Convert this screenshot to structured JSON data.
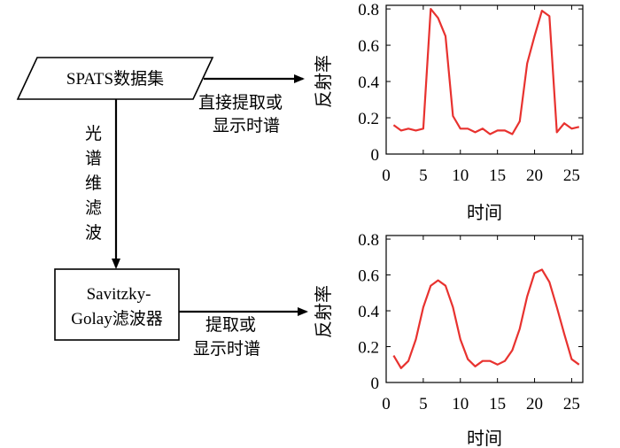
{
  "flowchart": {
    "dataset_label": "SPATS数据集",
    "filter_step_chars": [
      "光",
      "谱",
      "维",
      "滤",
      "波"
    ],
    "filter_box_line1": "Savitzky-",
    "filter_box_line2": "Golay滤波器",
    "top_arrow_line1": "直接提取或",
    "top_arrow_line2": "显示时谱",
    "bottom_arrow_line1": "提取或",
    "bottom_arrow_line2": "显示时谱"
  },
  "chart_data": [
    {
      "type": "line",
      "title": "",
      "xlabel": "时间",
      "ylabel": "反射率",
      "xlim": [
        0,
        26.5
      ],
      "ylim": [
        0,
        0.82
      ],
      "xticks": [
        0,
        5,
        10,
        15,
        20,
        25
      ],
      "yticks": [
        0,
        0.2,
        0.4,
        0.6,
        0.8
      ],
      "grid": false,
      "color": "#e8322f",
      "series": [
        {
          "x": [
            1,
            2,
            3,
            4,
            5,
            6,
            7,
            8,
            9,
            10,
            11,
            12,
            13,
            14,
            15,
            16,
            17,
            18,
            19,
            20,
            21,
            22,
            23,
            24,
            25,
            26
          ],
          "values": [
            0.16,
            0.13,
            0.14,
            0.13,
            0.14,
            0.8,
            0.75,
            0.65,
            0.21,
            0.14,
            0.14,
            0.12,
            0.14,
            0.11,
            0.13,
            0.13,
            0.11,
            0.18,
            0.5,
            0.65,
            0.79,
            0.76,
            0.12,
            0.17,
            0.14,
            0.15
          ]
        }
      ]
    },
    {
      "type": "line",
      "title": "",
      "xlabel": "时间",
      "ylabel": "反射率",
      "xlim": [
        0,
        26.5
      ],
      "ylim": [
        0,
        0.82
      ],
      "xticks": [
        0,
        5,
        10,
        15,
        20,
        25
      ],
      "yticks": [
        0,
        0.2,
        0.4,
        0.6,
        0.8
      ],
      "grid": false,
      "color": "#e8322f",
      "series": [
        {
          "x": [
            1,
            2,
            3,
            4,
            5,
            6,
            7,
            8,
            9,
            10,
            11,
            12,
            13,
            14,
            15,
            16,
            17,
            18,
            19,
            20,
            21,
            22,
            23,
            24,
            25,
            26
          ],
          "values": [
            0.15,
            0.08,
            0.12,
            0.24,
            0.42,
            0.54,
            0.57,
            0.54,
            0.42,
            0.24,
            0.13,
            0.09,
            0.12,
            0.12,
            0.1,
            0.12,
            0.18,
            0.3,
            0.48,
            0.61,
            0.63,
            0.56,
            0.42,
            0.27,
            0.13,
            0.1
          ]
        }
      ]
    }
  ]
}
